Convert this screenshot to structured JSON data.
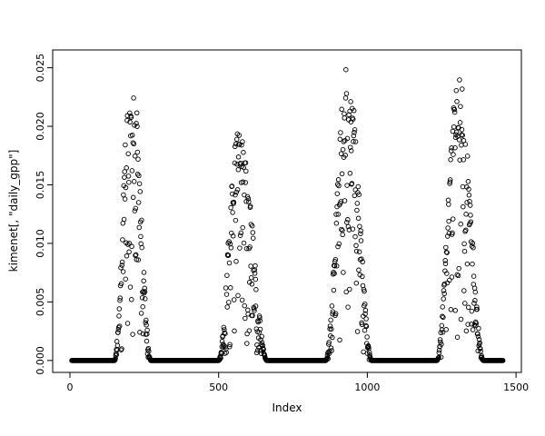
{
  "chart_data": {
    "type": "scatter",
    "title": "",
    "xlabel": "Index",
    "ylabel": "kimenet[, \"daily_gpp\"]",
    "xlim": [
      -58,
      1518
    ],
    "ylim": [
      -0.00102,
      0.02652
    ],
    "x_ticks": [
      0,
      500,
      1000,
      1500
    ],
    "x_tick_labels": [
      "0",
      "500",
      "1000",
      "1500"
    ],
    "y_ticks": [
      0.0,
      0.005,
      0.01,
      0.015,
      0.02,
      0.025
    ],
    "y_tick_labels": [
      "0.000",
      "0.005",
      "0.010",
      "0.015",
      "0.020",
      "0.025"
    ],
    "grid": false,
    "legend": "none",
    "marker": {
      "shape": "open-circle",
      "radius": 2.3,
      "color": "#000000"
    },
    "description": "Daily GPP time series over ~4 annual cycles: value is 0 outside the growing season, rises to a seasonal peak near 0.020-0.025, with large day-to-day downward scatter during each season.",
    "seed": 12345,
    "seasonal_pattern": {
      "n_days": 1456,
      "baseline_value": 0,
      "zero_segments": [
        [
          6,
          150
        ],
        [
          272,
          500
        ],
        [
          662,
          860
        ],
        [
          1014,
          1234
        ],
        [
          1390,
          1456
        ]
      ],
      "seasons": [
        {
          "start": 150,
          "peak": 207,
          "end": 272,
          "max": 0.0255
        },
        {
          "start": 500,
          "peak": 568,
          "end": 662,
          "max": 0.0206
        },
        {
          "start": 860,
          "peak": 933,
          "end": 1014,
          "max": 0.0253
        },
        {
          "start": 1234,
          "peak": 1307,
          "end": 1390,
          "max": 0.0246
        }
      ]
    }
  }
}
